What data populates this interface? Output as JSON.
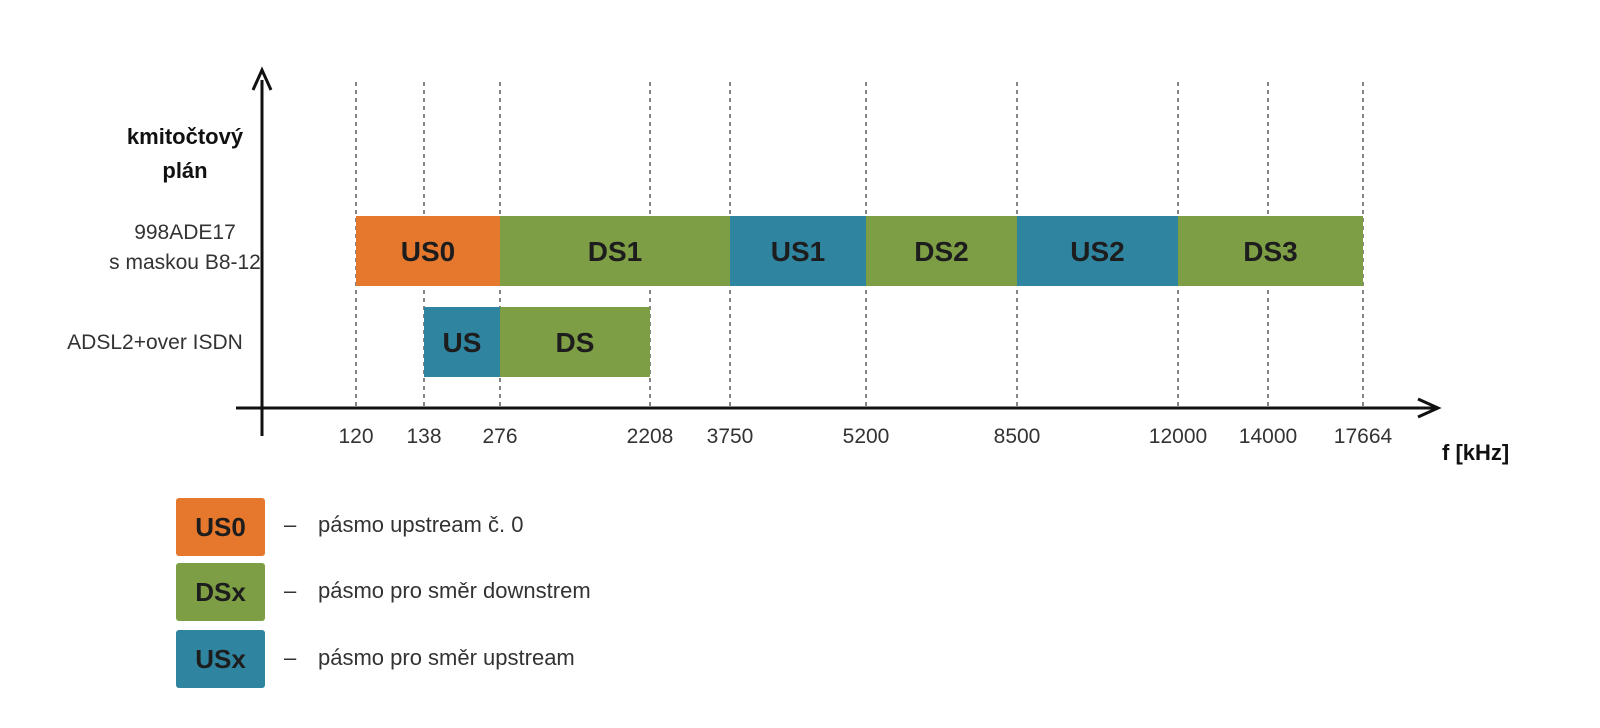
{
  "heading": {
    "line1": "kmitočtový",
    "line2": "plán"
  },
  "rows": [
    {
      "label_line1": "998ADE17",
      "label_line2": "s maskou B8-12"
    },
    {
      "label_line1": "ADSL2+over ISDN",
      "label_line2": ""
    }
  ],
  "x_axis": {
    "unit_label": "f [kHz]",
    "ticks": [
      "120",
      "138",
      "276",
      "2208",
      "3750",
      "5200",
      "8500",
      "12000",
      "14000",
      "17664"
    ]
  },
  "bands": [
    {
      "row": 0,
      "start": "120",
      "end": "276",
      "label": "US0",
      "kind": "US0"
    },
    {
      "row": 0,
      "start": "276",
      "end": "3750",
      "label": "DS1",
      "kind": "DS"
    },
    {
      "row": 0,
      "start": "3750",
      "end": "5200",
      "label": "US1",
      "kind": "US"
    },
    {
      "row": 0,
      "start": "5200",
      "end": "8500",
      "label": "DS2",
      "kind": "DS"
    },
    {
      "row": 0,
      "start": "8500",
      "end": "12000",
      "label": "US2",
      "kind": "US"
    },
    {
      "row": 0,
      "start": "12000",
      "end": "17664",
      "label": "DS3",
      "kind": "DS"
    },
    {
      "row": 1,
      "start": "138",
      "end": "276",
      "label": "US",
      "kind": "US"
    },
    {
      "row": 1,
      "start": "276",
      "end": "2208",
      "label": "DS",
      "kind": "DS"
    }
  ],
  "colors": {
    "US0": "#e6782e",
    "DS": "#7d9e44",
    "US": "#2f84a0"
  },
  "legend": [
    {
      "code": "US0",
      "kind": "US0",
      "dash": "–",
      "desc": "pásmo upstream č. 0"
    },
    {
      "code": "DSx",
      "kind": "DS",
      "dash": "–",
      "desc": "pásmo pro směr downstrem"
    },
    {
      "code": "USx",
      "kind": "US",
      "dash": "–",
      "desc": "pásmo pro směr upstream"
    }
  ]
}
